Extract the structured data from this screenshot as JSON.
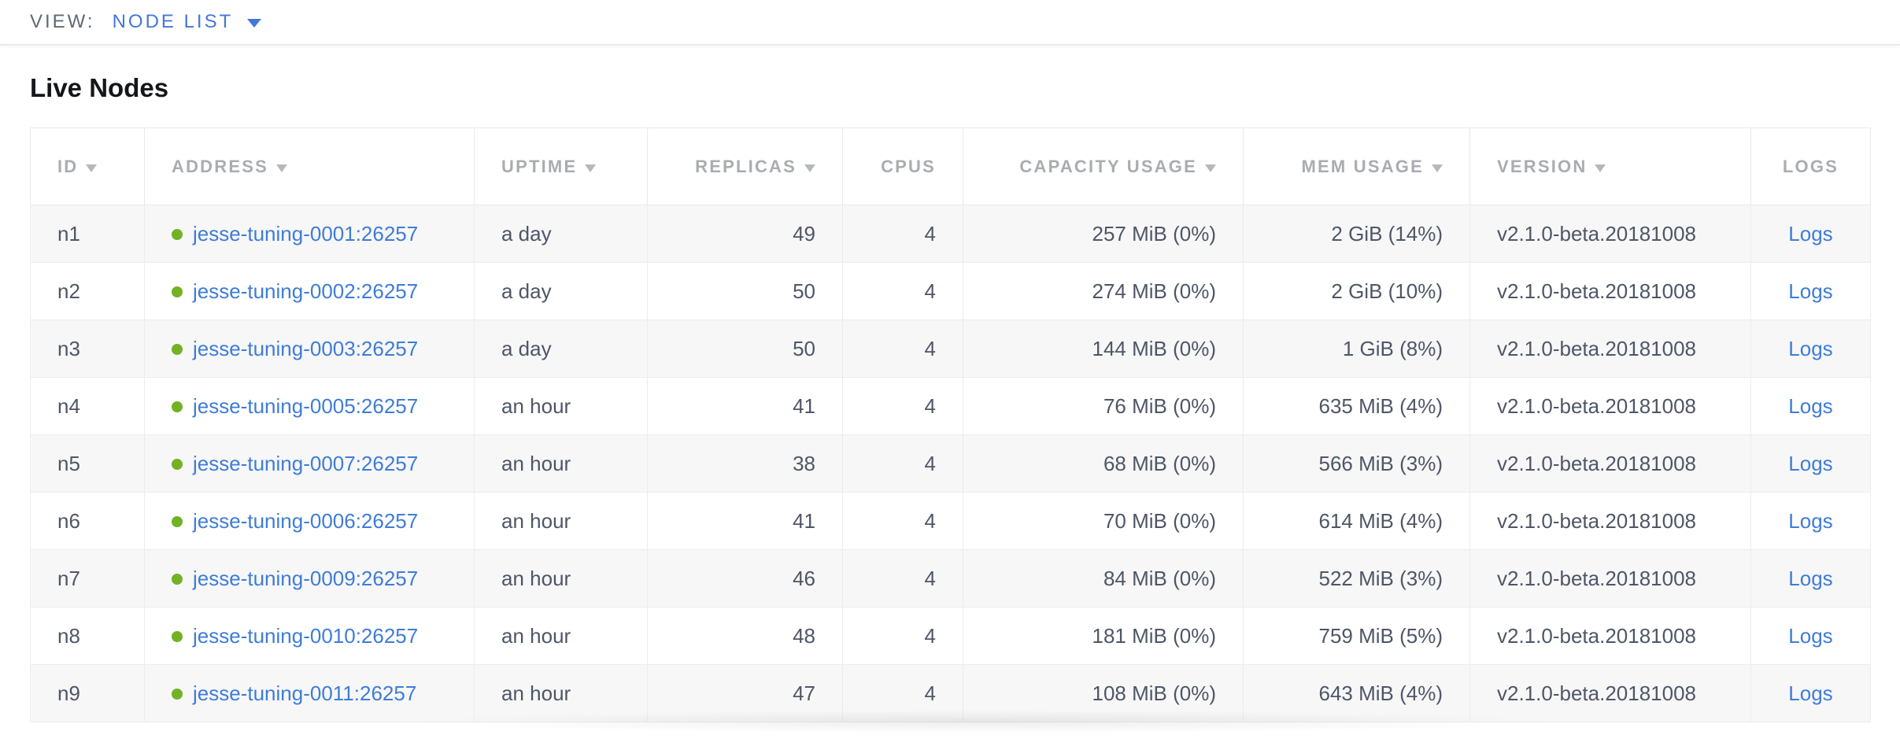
{
  "toolbar": {
    "view_label": "VIEW:",
    "view_value": "NODE LIST"
  },
  "page": {
    "title": "Live Nodes"
  },
  "colors": {
    "accent_blue": "#4577d8",
    "link_blue": "#3e7cd8",
    "healthy_green": "#72b224",
    "header_gray": "#a9acb0",
    "cell_text": "#4e5666",
    "row_stripe": "#f7f7f8"
  },
  "table": {
    "columns": [
      {
        "key": "id",
        "label": "ID",
        "sortable": true,
        "align": "left"
      },
      {
        "key": "address",
        "label": "ADDRESS",
        "sortable": true,
        "align": "left"
      },
      {
        "key": "uptime",
        "label": "UPTIME",
        "sortable": true,
        "align": "left"
      },
      {
        "key": "replicas",
        "label": "REPLICAS",
        "sortable": true,
        "align": "right"
      },
      {
        "key": "cpus",
        "label": "CPUS",
        "sortable": false,
        "align": "right"
      },
      {
        "key": "capacity",
        "label": "CAPACITY USAGE",
        "sortable": true,
        "align": "right"
      },
      {
        "key": "mem",
        "label": "MEM USAGE",
        "sortable": true,
        "align": "right"
      },
      {
        "key": "version",
        "label": "VERSION",
        "sortable": true,
        "align": "left"
      },
      {
        "key": "logs",
        "label": "LOGS",
        "sortable": false,
        "align": "center"
      }
    ],
    "rows": [
      {
        "id": "n1",
        "address": "jesse-tuning-0001:26257",
        "status": "healthy",
        "uptime": "a day",
        "replicas": "49",
        "cpus": "4",
        "capacity": "257 MiB (0%)",
        "mem": "2 GiB (14%)",
        "version": "v2.1.0-beta.20181008",
        "logs": "Logs"
      },
      {
        "id": "n2",
        "address": "jesse-tuning-0002:26257",
        "status": "healthy",
        "uptime": "a day",
        "replicas": "50",
        "cpus": "4",
        "capacity": "274 MiB (0%)",
        "mem": "2 GiB (10%)",
        "version": "v2.1.0-beta.20181008",
        "logs": "Logs"
      },
      {
        "id": "n3",
        "address": "jesse-tuning-0003:26257",
        "status": "healthy",
        "uptime": "a day",
        "replicas": "50",
        "cpus": "4",
        "capacity": "144 MiB (0%)",
        "mem": "1 GiB (8%)",
        "version": "v2.1.0-beta.20181008",
        "logs": "Logs"
      },
      {
        "id": "n4",
        "address": "jesse-tuning-0005:26257",
        "status": "healthy",
        "uptime": "an hour",
        "replicas": "41",
        "cpus": "4",
        "capacity": "76 MiB (0%)",
        "mem": "635 MiB (4%)",
        "version": "v2.1.0-beta.20181008",
        "logs": "Logs"
      },
      {
        "id": "n5",
        "address": "jesse-tuning-0007:26257",
        "status": "healthy",
        "uptime": "an hour",
        "replicas": "38",
        "cpus": "4",
        "capacity": "68 MiB (0%)",
        "mem": "566 MiB (3%)",
        "version": "v2.1.0-beta.20181008",
        "logs": "Logs"
      },
      {
        "id": "n6",
        "address": "jesse-tuning-0006:26257",
        "status": "healthy",
        "uptime": "an hour",
        "replicas": "41",
        "cpus": "4",
        "capacity": "70 MiB (0%)",
        "mem": "614 MiB (4%)",
        "version": "v2.1.0-beta.20181008",
        "logs": "Logs"
      },
      {
        "id": "n7",
        "address": "jesse-tuning-0009:26257",
        "status": "healthy",
        "uptime": "an hour",
        "replicas": "46",
        "cpus": "4",
        "capacity": "84 MiB (0%)",
        "mem": "522 MiB (3%)",
        "version": "v2.1.0-beta.20181008",
        "logs": "Logs"
      },
      {
        "id": "n8",
        "address": "jesse-tuning-0010:26257",
        "status": "healthy",
        "uptime": "an hour",
        "replicas": "48",
        "cpus": "4",
        "capacity": "181 MiB (0%)",
        "mem": "759 MiB (5%)",
        "version": "v2.1.0-beta.20181008",
        "logs": "Logs"
      },
      {
        "id": "n9",
        "address": "jesse-tuning-0011:26257",
        "status": "healthy",
        "uptime": "an hour",
        "replicas": "47",
        "cpus": "4",
        "capacity": "108 MiB (0%)",
        "mem": "643 MiB (4%)",
        "version": "v2.1.0-beta.20181008",
        "logs": "Logs"
      }
    ]
  }
}
